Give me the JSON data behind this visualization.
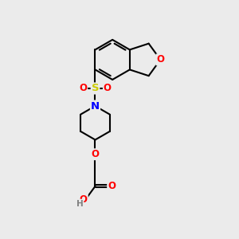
{
  "bg_color": "#ebebeb",
  "bond_color": "#000000",
  "bond_lw": 1.5,
  "colors": {
    "O": "#ff0000",
    "N": "#0000ff",
    "S": "#cccc00",
    "C": "#000000",
    "H": "#808080"
  },
  "font_size": 8.5
}
